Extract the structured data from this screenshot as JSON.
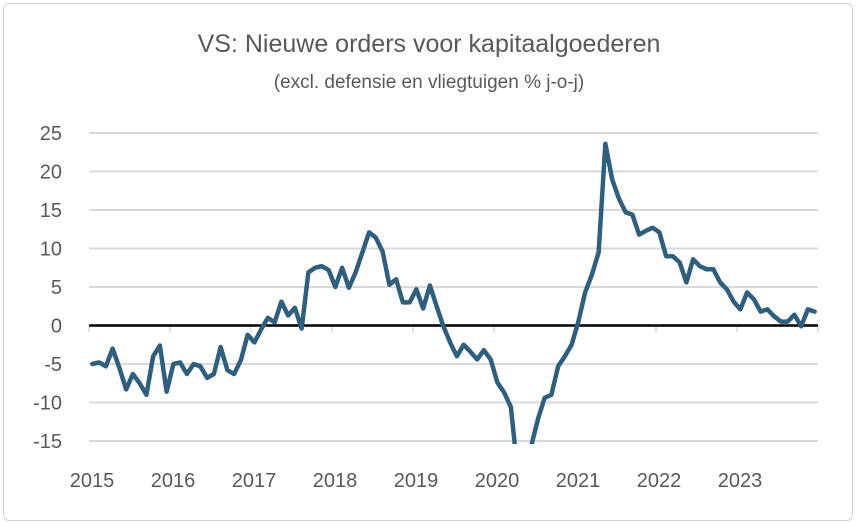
{
  "chart_data": {
    "type": "line",
    "title": "VS: Nieuwe orders voor kapitaalgoederen",
    "subtitle": "(excl. defensie en vliegtuigen % j-o-j)",
    "xlabel": "",
    "ylabel": "",
    "ylim": [
      -15,
      25
    ],
    "yticks": [
      "25",
      "20",
      "15",
      "10",
      "5",
      "0",
      "-5",
      "-10",
      "-15"
    ],
    "xticks": [
      "2015",
      "2016",
      "2017",
      "2018",
      "2019",
      "2020",
      "2021",
      "2022",
      "2023"
    ],
    "grid": true,
    "line_color": "#2e5f7f",
    "zero_line_color": "#000000",
    "start": "2015-01",
    "frequency": "monthly",
    "values": [
      -5,
      -4.8,
      -5.3,
      -3,
      -5.5,
      -8.3,
      -6.3,
      -7.5,
      -9,
      -4,
      -2.6,
      -8.6,
      -5,
      -4.8,
      -6.3,
      -5,
      -5.3,
      -6.8,
      -6.3,
      -2.8,
      -5.8,
      -6.3,
      -4.5,
      -1.2,
      -2.2,
      -0.5,
      1,
      0.4,
      3.1,
      1.3,
      2.3,
      -0.4,
      6.9,
      7.5,
      7.7,
      7.2,
      5,
      7.5,
      4.9,
      6.9,
      9.5,
      12.1,
      11.4,
      9.6,
      5.3,
      6,
      3,
      3,
      4.7,
      2.2,
      5.2,
      2.5,
      -0.1,
      -2.2,
      -4,
      -2.5,
      -3.4,
      -4.4,
      -3.2,
      -4.4,
      -7.4,
      -8.7,
      -10.6,
      -19,
      -18,
      -15.7,
      -12.2,
      -9.4,
      -9,
      -5.3,
      -4,
      -2.5,
      0.5,
      4.3,
      6.6,
      9.5,
      23.6,
      19,
      16.5,
      14.7,
      14.4,
      11.8,
      12.3,
      12.7,
      12.1,
      9,
      9,
      8.2,
      5.6,
      8.6,
      7.7,
      7.3,
      7.3,
      5.6,
      4.7,
      3.1,
      2.1,
      4.3,
      3.4,
      1.8,
      2.1,
      1.2,
      0.5,
      0.5,
      1.4,
      -0.1,
      2.1,
      1.8
    ]
  }
}
